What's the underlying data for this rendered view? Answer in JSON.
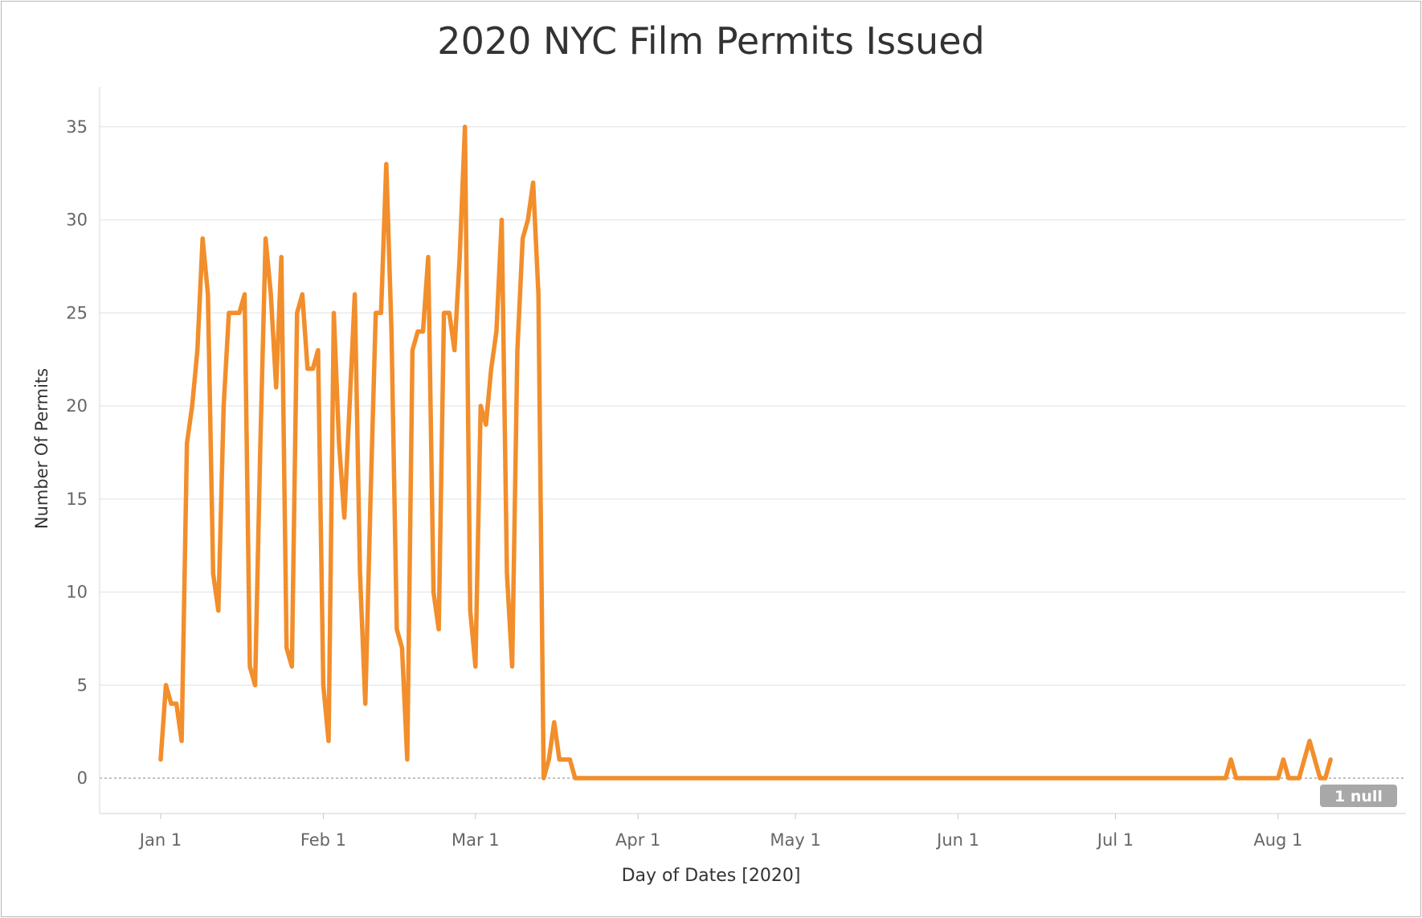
{
  "chart_data": {
    "type": "line",
    "title": "2020 NYC Film Permits Issued",
    "xlabel": "Day of Dates [2020]",
    "ylabel": "Number Of Permits",
    "ylim": [
      -2,
      37
    ],
    "y_ticks": [
      0,
      5,
      10,
      15,
      20,
      25,
      30,
      35
    ],
    "x_range": [
      "2020-01-01",
      "2020-08-31"
    ],
    "x_ticks": [
      {
        "date": "2020-01-01",
        "label": "Jan 1"
      },
      {
        "date": "2020-02-01",
        "label": "Feb 1"
      },
      {
        "date": "2020-03-01",
        "label": "Mar 1"
      },
      {
        "date": "2020-04-01",
        "label": "Apr 1"
      },
      {
        "date": "2020-05-01",
        "label": "May 1"
      },
      {
        "date": "2020-06-01",
        "label": "Jun 1"
      },
      {
        "date": "2020-07-01",
        "label": "Jul 1"
      },
      {
        "date": "2020-08-01",
        "label": "Aug 1"
      }
    ],
    "grid": true,
    "line_color": "#f28e2b",
    "null_indicator": "1 null",
    "series": [
      {
        "x": [
          "2020-01-01",
          "2020-01-02",
          "2020-01-03",
          "2020-01-04",
          "2020-01-05",
          "2020-01-06",
          "2020-01-07",
          "2020-01-08",
          "2020-01-09",
          "2020-01-10",
          "2020-01-11",
          "2020-01-12",
          "2020-01-13",
          "2020-01-14",
          "2020-01-15",
          "2020-01-16",
          "2020-01-17",
          "2020-01-18",
          "2020-01-19",
          "2020-01-20",
          "2020-01-21",
          "2020-01-22",
          "2020-01-23",
          "2020-01-24",
          "2020-01-25",
          "2020-01-26",
          "2020-01-27",
          "2020-01-28",
          "2020-01-29",
          "2020-01-30",
          "2020-01-31",
          "2020-02-01",
          "2020-02-02",
          "2020-02-03",
          "2020-02-04",
          "2020-02-05",
          "2020-02-06",
          "2020-02-07",
          "2020-02-08",
          "2020-02-09",
          "2020-02-10",
          "2020-02-11",
          "2020-02-12",
          "2020-02-13",
          "2020-02-14",
          "2020-02-15",
          "2020-02-16",
          "2020-02-17",
          "2020-02-18",
          "2020-02-19",
          "2020-02-20",
          "2020-02-21",
          "2020-02-22",
          "2020-02-23",
          "2020-02-24",
          "2020-02-25",
          "2020-02-26",
          "2020-02-27",
          "2020-02-28",
          "2020-02-29",
          "2020-03-01",
          "2020-03-02",
          "2020-03-03",
          "2020-03-04",
          "2020-03-05",
          "2020-03-06",
          "2020-03-07",
          "2020-03-08",
          "2020-03-09",
          "2020-03-10",
          "2020-03-11",
          "2020-03-12",
          "2020-03-13",
          "2020-03-14",
          "2020-03-15",
          "2020-03-16",
          "2020-03-17",
          "2020-03-18",
          "2020-03-19",
          "2020-03-20",
          "2020-07-22",
          "2020-07-23",
          "2020-07-24",
          "2020-08-01",
          "2020-08-02",
          "2020-08-03",
          "2020-08-04",
          "2020-08-05",
          "2020-08-06",
          "2020-08-07",
          "2020-08-08",
          "2020-08-09",
          "2020-08-10",
          "2020-08-11"
        ],
        "values": [
          1,
          5,
          4,
          4,
          2,
          18,
          20,
          23,
          29,
          26,
          11,
          9,
          20,
          25,
          25,
          25,
          26,
          6,
          5,
          18,
          29,
          26,
          21,
          28,
          7,
          6,
          25,
          26,
          22,
          22,
          23,
          5,
          2,
          25,
          18,
          14,
          20,
          26,
          11,
          4,
          15,
          25,
          25,
          33,
          24,
          8,
          7,
          1,
          23,
          24,
          24,
          28,
          10,
          8,
          25,
          25,
          23,
          28,
          35,
          9,
          6,
          20,
          19,
          22,
          24,
          30,
          11,
          6,
          23,
          29,
          30,
          32,
          26,
          0,
          1,
          3,
          1,
          1,
          1,
          0,
          0,
          1,
          0,
          0,
          1,
          0,
          0,
          0,
          1,
          2,
          1,
          0,
          0,
          1
        ]
      }
    ]
  }
}
